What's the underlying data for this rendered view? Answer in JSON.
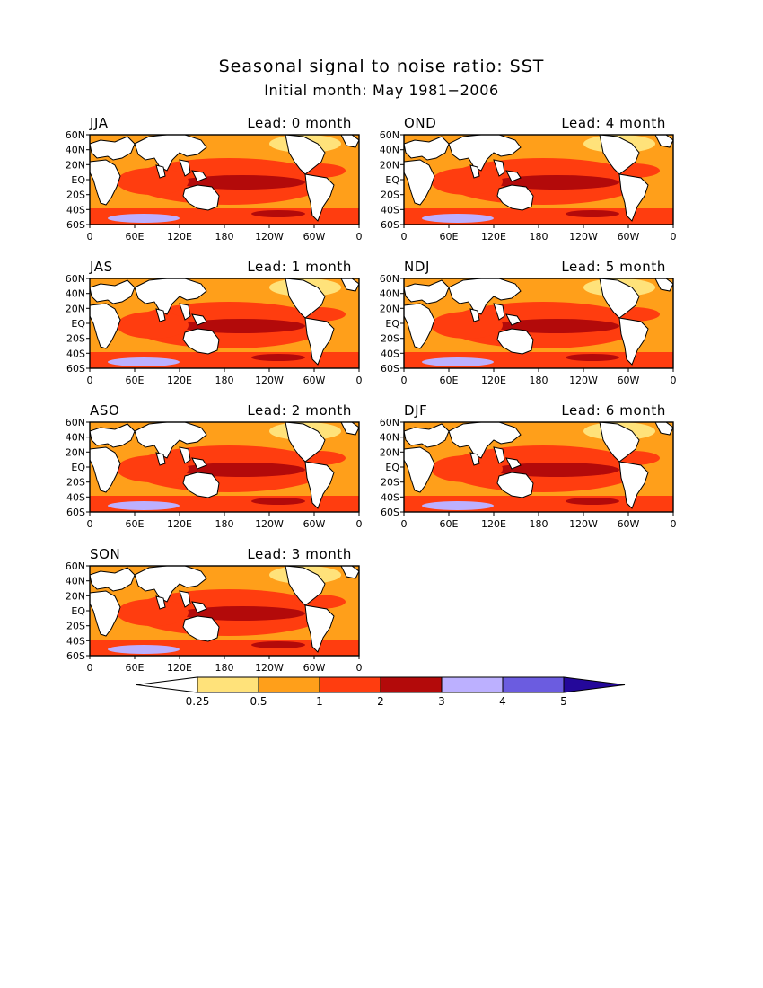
{
  "figure": {
    "title": "Seasonal signal to noise ratio: SST",
    "subtitle": "Initial month: May 1981−2006"
  },
  "panels": [
    {
      "season": "JJA",
      "lead": "Lead: 0 month"
    },
    {
      "season": "OND",
      "lead": "Lead: 4 month"
    },
    {
      "season": "JAS",
      "lead": "Lead: 1 month"
    },
    {
      "season": "NDJ",
      "lead": "Lead: 5 month"
    },
    {
      "season": "ASO",
      "lead": "Lead: 2 month"
    },
    {
      "season": "DJF",
      "lead": "Lead: 6 month"
    },
    {
      "season": "SON",
      "lead": "Lead: 3 month"
    }
  ],
  "axes": {
    "lat_ticks": [
      "60N",
      "40N",
      "20N",
      "EQ",
      "20S",
      "40S",
      "60S"
    ],
    "lon_ticks": [
      "0",
      "60E",
      "120E",
      "180",
      "120W",
      "60W",
      "0"
    ]
  },
  "colorbar": {
    "labels": [
      "0.25",
      "0.5",
      "1",
      "2",
      "3",
      "4",
      "5"
    ],
    "colors": [
      "#ffffff",
      "#ffe27a",
      "#ff9f1a",
      "#ff3d0f",
      "#b30a0a",
      "#bcb0ff",
      "#6b5ce0",
      "#24089a"
    ]
  },
  "land_color": "#ffffff"
}
